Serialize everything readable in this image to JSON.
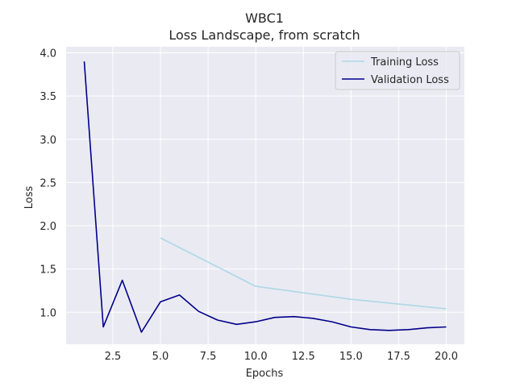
{
  "chart_data": {
    "type": "line",
    "title": "WBC1",
    "subtitle": "Loss Landscape, from scratch",
    "xlabel": "Epochs",
    "ylabel": "Loss",
    "xlim": [
      0.05,
      20.95
    ],
    "ylim": [
      0.63,
      4.07
    ],
    "xticks": [
      2.5,
      5.0,
      7.5,
      10.0,
      12.5,
      15.0,
      17.5,
      20.0
    ],
    "xtick_labels": [
      "2.5",
      "5.0",
      "7.5",
      "10.0",
      "12.5",
      "15.0",
      "17.5",
      "20.0"
    ],
    "yticks": [
      1.0,
      1.5,
      2.0,
      2.5,
      3.0,
      3.5,
      4.0
    ],
    "ytick_labels": [
      "1.0",
      "1.5",
      "2.0",
      "2.5",
      "3.0",
      "3.5",
      "4.0"
    ],
    "grid": true,
    "legend_position": "top-right",
    "series": [
      {
        "name": "Training Loss",
        "color": "#add8e6",
        "x": [
          5,
          10,
          15,
          20
        ],
        "values": [
          1.86,
          1.3,
          1.15,
          1.04
        ]
      },
      {
        "name": "Validation Loss",
        "color": "#00008b",
        "x": [
          1,
          2,
          3,
          4,
          5,
          6,
          7,
          8,
          9,
          10,
          11,
          12,
          13,
          14,
          15,
          16,
          17,
          18,
          19,
          20
        ],
        "values": [
          3.9,
          0.83,
          1.37,
          0.77,
          1.12,
          1.2,
          1.01,
          0.91,
          0.86,
          0.89,
          0.94,
          0.95,
          0.93,
          0.89,
          0.83,
          0.8,
          0.79,
          0.8,
          0.82,
          0.83
        ]
      }
    ]
  }
}
